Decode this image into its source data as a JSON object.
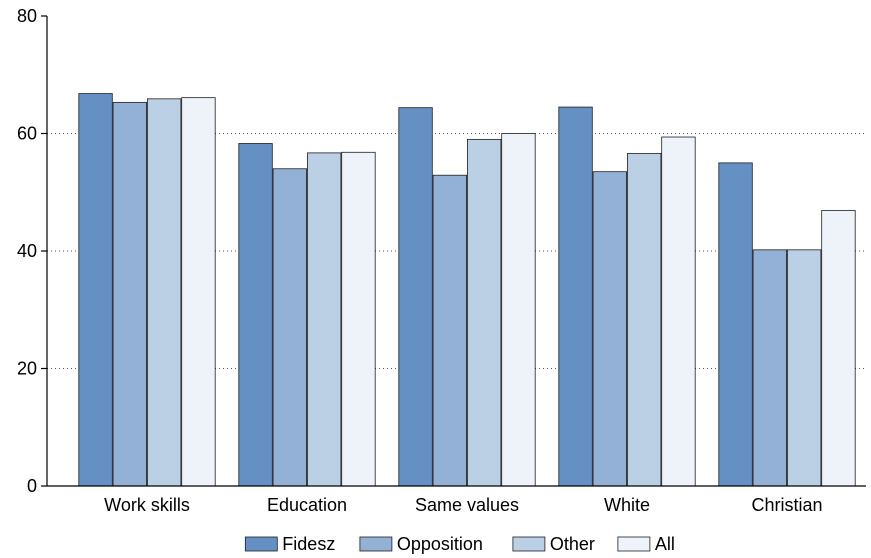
{
  "chart_data": {
    "type": "bar",
    "title": "",
    "xlabel": "",
    "ylabel": "",
    "categories": [
      "Work skills",
      "Education",
      "Same values",
      "White",
      "Christian"
    ],
    "series": [
      {
        "name": "Fidesz",
        "values": [
          66.8,
          58.3,
          64.4,
          64.5,
          55.0
        ],
        "color": "#6590c3"
      },
      {
        "name": "Opposition",
        "values": [
          65.3,
          54.0,
          52.9,
          53.5,
          40.2
        ],
        "color": "#93b1d7"
      },
      {
        "name": "Other",
        "values": [
          65.9,
          56.7,
          59.0,
          56.6,
          40.2
        ],
        "color": "#bcd0e5"
      },
      {
        "name": "All",
        "values": [
          66.1,
          56.8,
          60.0,
          59.4,
          46.9
        ],
        "color": "#eef3f9"
      }
    ],
    "ylim": [
      0,
      80
    ],
    "yticks": [
      0,
      20,
      40,
      60,
      80
    ],
    "grid": true,
    "legend_position": "bottom"
  }
}
